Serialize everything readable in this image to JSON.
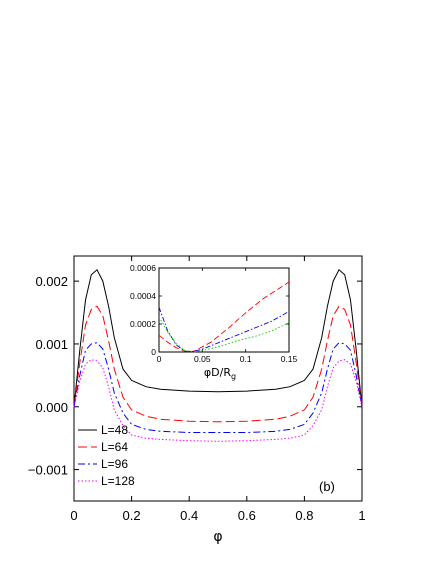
{
  "chart_data": [
    {
      "type": "line",
      "annotation": "(b)",
      "xlabel": "φ",
      "ylabel": "",
      "xlim": [
        0,
        1
      ],
      "ylim": [
        -0.0015,
        0.0024
      ],
      "xticks": [
        0,
        0.2,
        0.4,
        0.6,
        0.8,
        1
      ],
      "xtick_labels": [
        "0",
        "0.2",
        "0.4",
        "0.6",
        "0.8",
        "1"
      ],
      "yticks": [
        -0.001,
        0.0,
        0.001,
        0.002
      ],
      "ytick_labels": [
        "−0.001",
        "0.000",
        "0.001",
        "0.002"
      ],
      "legend_position": "bottom-left",
      "series": [
        {
          "name": "L=48",
          "color": "#000000",
          "dash": "solid",
          "x": [
            0,
            0.02,
            0.04,
            0.06,
            0.08,
            0.1,
            0.12,
            0.14,
            0.17,
            0.2,
            0.25,
            0.3,
            0.4,
            0.5,
            0.6,
            0.7,
            0.75,
            0.8,
            0.83,
            0.86,
            0.88,
            0.9,
            0.92,
            0.94,
            0.96,
            0.98,
            1
          ],
          "y": [
            0,
            0.0009,
            0.0017,
            0.0021,
            0.00218,
            0.002,
            0.0016,
            0.0011,
            0.0006,
            0.00042,
            0.00032,
            0.00028,
            0.00025,
            0.00024,
            0.00025,
            0.00028,
            0.00032,
            0.00042,
            0.0006,
            0.0011,
            0.0016,
            0.002,
            0.00218,
            0.0021,
            0.0017,
            0.0009,
            0
          ]
        },
        {
          "name": "L=64",
          "color": "#ff0000",
          "dash": "long-dash",
          "x": [
            0,
            0.02,
            0.04,
            0.06,
            0.08,
            0.1,
            0.12,
            0.14,
            0.17,
            0.2,
            0.25,
            0.3,
            0.4,
            0.5,
            0.6,
            0.7,
            0.75,
            0.8,
            0.83,
            0.86,
            0.88,
            0.9,
            0.92,
            0.94,
            0.96,
            0.98,
            1
          ],
          "y": [
            0,
            0.0007,
            0.0013,
            0.00155,
            0.0016,
            0.00145,
            0.00105,
            0.0006,
            0.00015,
            -5e-05,
            -0.00015,
            -0.0002,
            -0.00023,
            -0.00024,
            -0.00023,
            -0.0002,
            -0.00015,
            -5e-05,
            0.00015,
            0.0006,
            0.00105,
            0.00145,
            0.0016,
            0.00155,
            0.0013,
            0.0007,
            0
          ]
        },
        {
          "name": "L=96",
          "color": "#0000ff",
          "dash": "dash-dot",
          "x": [
            0,
            0.02,
            0.04,
            0.06,
            0.08,
            0.1,
            0.12,
            0.14,
            0.17,
            0.2,
            0.25,
            0.3,
            0.4,
            0.5,
            0.6,
            0.7,
            0.75,
            0.8,
            0.83,
            0.86,
            0.88,
            0.9,
            0.92,
            0.94,
            0.96,
            0.98,
            1
          ],
          "y": [
            0,
            0.0005,
            0.0009,
            0.001,
            0.00102,
            0.00092,
            0.0006,
            0.00022,
            -0.0001,
            -0.00028,
            -0.00036,
            -0.00039,
            -0.00041,
            -0.00041,
            -0.00041,
            -0.00039,
            -0.00036,
            -0.00028,
            -0.0001,
            0.00022,
            0.0006,
            0.00092,
            0.00102,
            0.001,
            0.0009,
            0.0005,
            0
          ]
        },
        {
          "name": "L=128",
          "color": "#ff00ff",
          "dash": "dotted",
          "x": [
            0,
            0.02,
            0.04,
            0.06,
            0.08,
            0.1,
            0.12,
            0.14,
            0.17,
            0.2,
            0.25,
            0.3,
            0.4,
            0.5,
            0.6,
            0.7,
            0.75,
            0.8,
            0.83,
            0.86,
            0.88,
            0.9,
            0.92,
            0.94,
            0.96,
            0.98,
            1
          ],
          "y": [
            0,
            0.0004,
            0.00068,
            0.00075,
            0.00073,
            0.00062,
            0.00032,
            -5e-05,
            -0.0003,
            -0.00045,
            -0.0005,
            -0.00052,
            -0.00054,
            -0.00055,
            -0.00054,
            -0.00052,
            -0.0005,
            -0.00045,
            -0.0003,
            -5e-05,
            0.00032,
            0.00062,
            0.00073,
            0.00075,
            0.00068,
            0.0004,
            0
          ]
        }
      ]
    },
    {
      "type": "line",
      "xlabel": "φD/R",
      "xlabel_subscript": "g",
      "ylabel": "",
      "xlim": [
        0,
        0.15
      ],
      "ylim": [
        0,
        0.0006
      ],
      "xticks": [
        0,
        0.05,
        0.1,
        0.15
      ],
      "xtick_labels": [
        "0",
        "0.05",
        "0.1",
        "0.15"
      ],
      "yticks": [
        0,
        0.0002,
        0.0004,
        0.0006
      ],
      "ytick_labels": [
        "0",
        "0.0002",
        "0.0004",
        "0.0006"
      ],
      "series": [
        {
          "color": "#ff0000",
          "dash": "long-dash",
          "x": [
            0,
            0.01,
            0.02,
            0.03,
            0.04,
            0.06,
            0.08,
            0.1,
            0.12,
            0.15
          ],
          "y": [
            0.00012,
            7e-05,
            3e-05,
            5e-06,
            5e-06,
            7e-05,
            0.00017,
            0.00028,
            0.00038,
            0.0005
          ]
        },
        {
          "color": "#0000ff",
          "dash": "dash-dot",
          "x": [
            0,
            0.01,
            0.02,
            0.03,
            0.04,
            0.05,
            0.07,
            0.09,
            0.11,
            0.13,
            0.15
          ],
          "y": [
            0.00032,
            0.00015,
            5e-05,
            5e-06,
            5e-06,
            2e-05,
            7e-05,
            0.00012,
            0.00017,
            0.00022,
            0.00029
          ]
        },
        {
          "color": "#00cc00",
          "dash": "dotted",
          "x": [
            0,
            0.005,
            0.01,
            0.02,
            0.03,
            0.04,
            0.05,
            0.07,
            0.09,
            0.11,
            0.13,
            0.15
          ],
          "y": [
            0.00025,
            0.0002,
            0.00014,
            6e-05,
            1e-05,
            0.0,
            1e-05,
            4e-05,
            8e-05,
            0.00011,
            0.00015,
            0.00021
          ]
        }
      ]
    }
  ]
}
